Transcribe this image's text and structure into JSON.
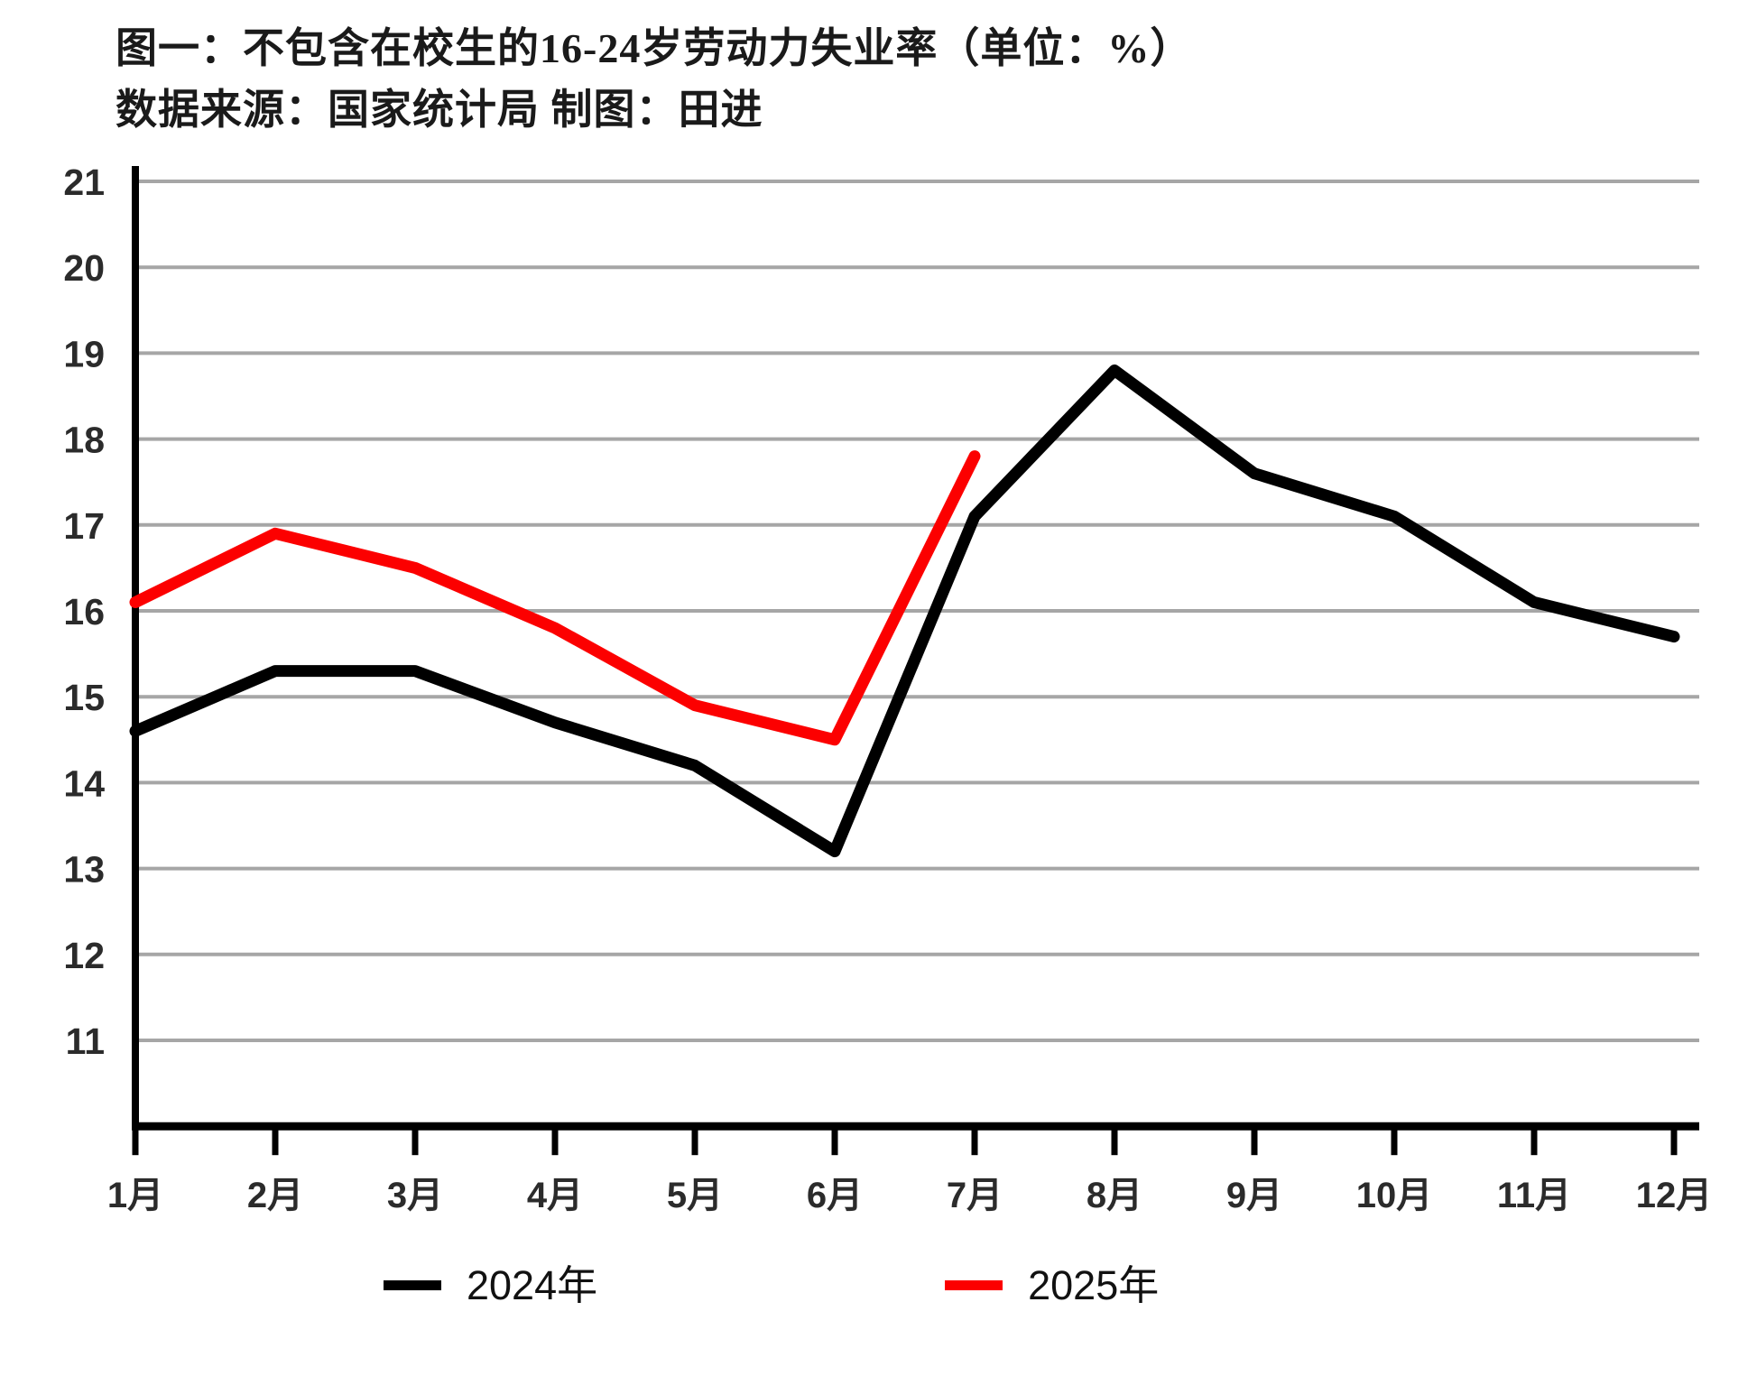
{
  "title": {
    "line1": "图一：不包含在校生的16-24岁劳动力失业率（单位：%）",
    "line2": "数据来源：国家统计局 制图：田进"
  },
  "colors": {
    "series_2024": "#000000",
    "series_2025": "#fc0000",
    "gridline": "#a6a6a6",
    "axis": "#000000",
    "tick_label": "#2b2b2b"
  },
  "chart_data": {
    "type": "line",
    "title": "图一：不包含在校生的16-24岁劳动力失业率（单位：%）",
    "source_note": "数据来源：国家统计局 制图：田进",
    "unit": "%",
    "categories": [
      "1月",
      "2月",
      "3月",
      "4月",
      "5月",
      "6月",
      "7月",
      "8月",
      "9月",
      "10月",
      "11月",
      "12月"
    ],
    "series": [
      {
        "name": "2024年",
        "color": "#000000",
        "values": [
          14.6,
          15.3,
          15.3,
          14.7,
          14.2,
          13.2,
          17.1,
          18.8,
          17.6,
          17.1,
          16.1,
          15.7
        ]
      },
      {
        "name": "2025年",
        "color": "#fc0000",
        "values": [
          16.1,
          16.9,
          16.5,
          15.8,
          14.9,
          14.5,
          17.8
        ]
      }
    ],
    "ylim": [
      10,
      21
    ],
    "yticks": [
      11,
      12,
      13,
      14,
      15,
      16,
      17,
      18,
      19,
      20,
      21
    ],
    "grid": true,
    "legend_position": "bottom"
  }
}
